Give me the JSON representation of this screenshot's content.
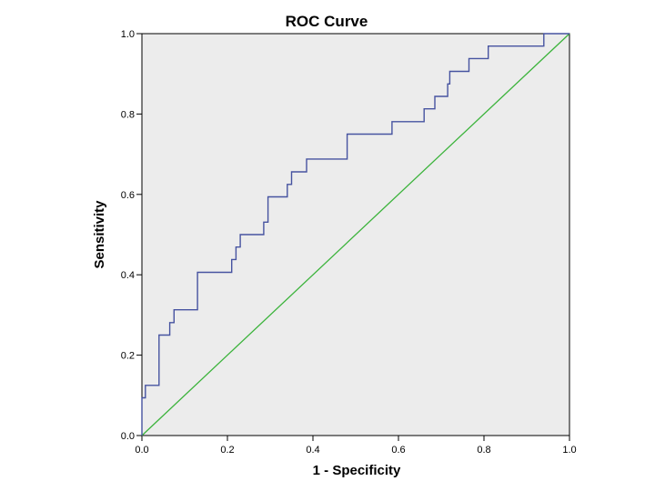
{
  "chart_data": {
    "type": "line",
    "title": "ROC Curve",
    "xlabel": "1 - Specificity",
    "ylabel": "Sensitivity",
    "xlim": [
      0,
      1
    ],
    "ylim": [
      0,
      1
    ],
    "xticks": [
      "0.0",
      "0.2",
      "0.4",
      "0.6",
      "0.8",
      "1.0"
    ],
    "yticks": [
      "0.0",
      "0.2",
      "0.4",
      "0.6",
      "0.8",
      "1.0"
    ],
    "grid": false,
    "legend": "none",
    "colors": {
      "plot_background": "#ececec",
      "roc_curve": "#4653a0",
      "reference_line": "#3bb33b"
    },
    "series": [
      {
        "x": [
          0.0,
          0.0,
          0.008,
          0.008,
          0.04,
          0.04,
          0.065,
          0.065,
          0.075,
          0.075,
          0.13,
          0.13,
          0.21,
          0.21,
          0.22,
          0.22,
          0.23,
          0.23,
          0.285,
          0.285,
          0.295,
          0.295,
          0.34,
          0.34,
          0.35,
          0.35,
          0.385,
          0.385,
          0.48,
          0.48,
          0.585,
          0.585,
          0.66,
          0.66,
          0.685,
          0.685,
          0.715,
          0.715,
          0.72,
          0.72,
          0.765,
          0.765,
          0.81,
          0.81,
          0.94,
          0.94,
          1.0
        ],
        "y": [
          0.0,
          0.094,
          0.094,
          0.125,
          0.125,
          0.25,
          0.25,
          0.281,
          0.281,
          0.313,
          0.313,
          0.406,
          0.406,
          0.438,
          0.438,
          0.469,
          0.469,
          0.5,
          0.5,
          0.531,
          0.531,
          0.594,
          0.594,
          0.625,
          0.625,
          0.656,
          0.656,
          0.688,
          0.688,
          0.75,
          0.75,
          0.781,
          0.781,
          0.813,
          0.813,
          0.844,
          0.844,
          0.875,
          0.875,
          0.906,
          0.906,
          0.938,
          0.938,
          0.969,
          0.969,
          1.0,
          1.0
        ]
      },
      {
        "x": [
          0,
          1
        ],
        "y": [
          0,
          1
        ]
      }
    ]
  }
}
